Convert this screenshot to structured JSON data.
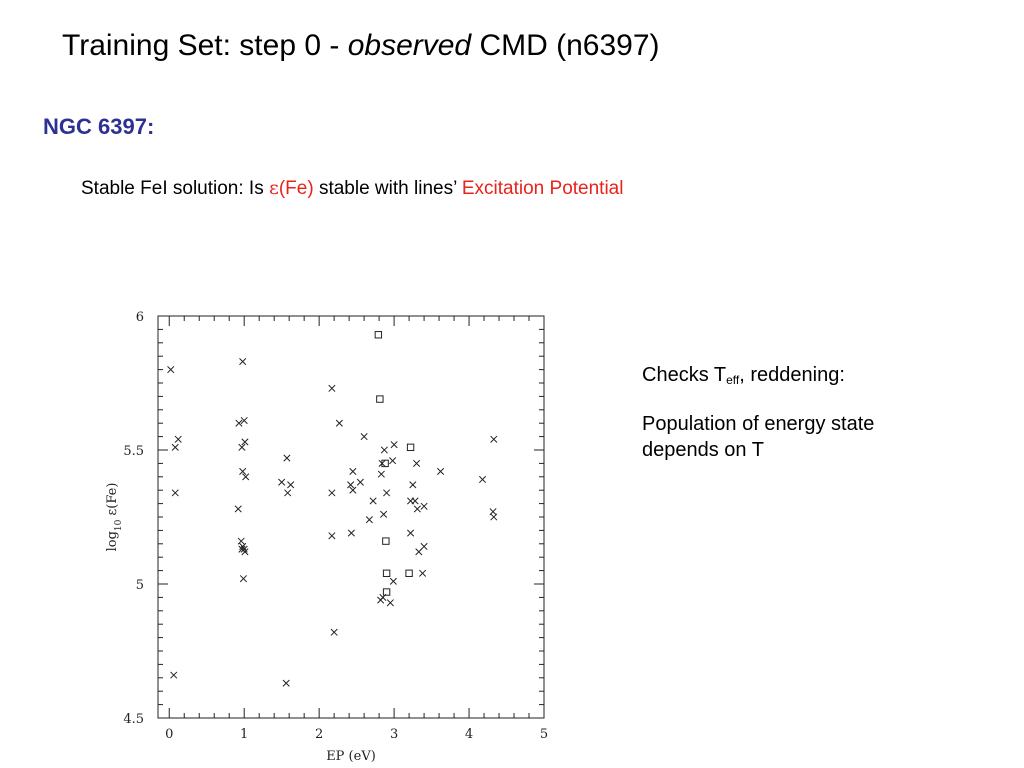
{
  "slide": {
    "title_prefix": "Training Set:  step 0 - ",
    "title_emphasis": "observed",
    "title_suffix": " CMD (n6397)",
    "heading": "NGC 6397:",
    "subtitle_prefix": "Stable FeI solution:  Is ",
    "subtitle_symbol": "ε",
    "subtitle_symbol_tail": "(Fe)",
    "subtitle_middle": "  stable with lines’ ",
    "subtitle_highlight": "Excitation Potential",
    "colors": {
      "heading": "#2e3192",
      "highlight": "#e8231b"
    }
  },
  "notes": {
    "line1_prefix": "Checks T",
    "line1_sub": "eff",
    "line1_suffix": ", reddening:",
    "line2": "Population of energy state depends on T"
  },
  "chart_data": {
    "type": "scatter",
    "xlabel": "EP (eV)",
    "ylabel": "log10 ε(Fe)",
    "xlim": [
      -0.15,
      5
    ],
    "ylim": [
      4.5,
      6
    ],
    "xticks": [
      0,
      1,
      2,
      3,
      4,
      5
    ],
    "yticks": [
      4.5,
      5,
      5.5,
      6
    ],
    "xtick_labels": [
      "0",
      "1",
      "2",
      "3",
      "4",
      "5"
    ],
    "ytick_labels": [
      "4.5",
      "5",
      "5.5",
      "6"
    ],
    "series": [
      {
        "marker": "cross",
        "points": [
          [
            0.02,
            5.8
          ],
          [
            0.08,
            5.51
          ],
          [
            0.12,
            5.54
          ],
          [
            0.08,
            5.34
          ],
          [
            0.06,
            4.66
          ],
          [
            0.93,
            5.6
          ],
          [
            1.0,
            5.61
          ],
          [
            0.98,
            5.83
          ],
          [
            0.97,
            5.51
          ],
          [
            1.01,
            5.53
          ],
          [
            0.98,
            5.42
          ],
          [
            1.02,
            5.4
          ],
          [
            0.92,
            5.28
          ],
          [
            0.96,
            5.16
          ],
          [
            0.98,
            5.14
          ],
          [
            1.0,
            5.13
          ],
          [
            1.01,
            5.12
          ],
          [
            0.97,
            5.13
          ],
          [
            0.99,
            5.02
          ],
          [
            1.5,
            5.38
          ],
          [
            1.57,
            5.47
          ],
          [
            1.62,
            5.37
          ],
          [
            1.58,
            5.34
          ],
          [
            1.56,
            4.63
          ],
          [
            2.17,
            5.73
          ],
          [
            2.27,
            5.6
          ],
          [
            2.17,
            5.34
          ],
          [
            2.17,
            5.18
          ],
          [
            2.2,
            4.82
          ],
          [
            2.45,
            5.42
          ],
          [
            2.42,
            5.37
          ],
          [
            2.45,
            5.35
          ],
          [
            2.55,
            5.38
          ],
          [
            2.6,
            5.55
          ],
          [
            2.67,
            5.24
          ],
          [
            2.43,
            5.19
          ],
          [
            2.72,
            5.31
          ],
          [
            2.87,
            5.5
          ],
          [
            2.84,
            5.45
          ],
          [
            2.83,
            5.41
          ],
          [
            2.9,
            5.34
          ],
          [
            2.86,
            5.26
          ],
          [
            3.0,
            5.52
          ],
          [
            2.98,
            5.46
          ],
          [
            3.3,
            5.45
          ],
          [
            3.22,
            5.31
          ],
          [
            3.28,
            5.31
          ],
          [
            3.25,
            5.37
          ],
          [
            3.31,
            5.28
          ],
          [
            3.22,
            5.19
          ],
          [
            3.33,
            5.12
          ],
          [
            3.4,
            5.14
          ],
          [
            3.38,
            5.04
          ],
          [
            3.4,
            5.29
          ],
          [
            3.62,
            5.42
          ],
          [
            2.99,
            5.01
          ],
          [
            2.85,
            4.95
          ],
          [
            2.82,
            4.94
          ],
          [
            2.95,
            4.93
          ],
          [
            4.18,
            5.39
          ],
          [
            4.32,
            5.27
          ],
          [
            4.33,
            5.25
          ],
          [
            4.33,
            5.54
          ]
        ]
      },
      {
        "marker": "square",
        "points": [
          [
            2.79,
            5.93
          ],
          [
            2.81,
            5.69
          ],
          [
            2.88,
            5.45
          ],
          [
            3.22,
            5.51
          ],
          [
            2.89,
            5.16
          ],
          [
            2.9,
            5.04
          ],
          [
            3.2,
            5.04
          ],
          [
            2.9,
            4.97
          ]
        ]
      }
    ]
  }
}
